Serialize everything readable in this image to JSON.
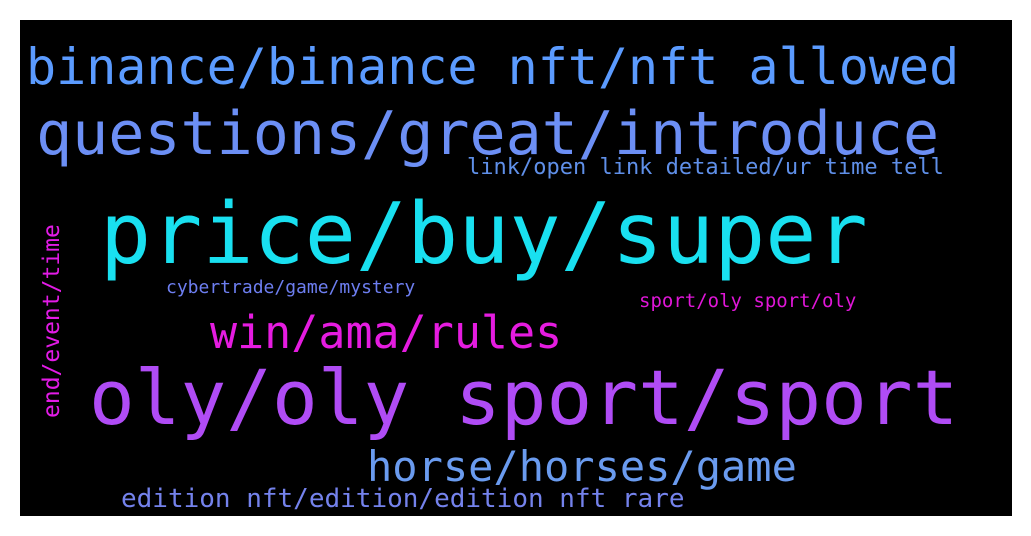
{
  "words": [
    {
      "text": "binance/binance nft/nft allowed",
      "color": "#5b9bff"
    },
    {
      "text": "questions/great/introduce",
      "color": "#6c8ff5"
    },
    {
      "text": "link/open link detailed/ur time tell",
      "color": "#5f8fe8"
    },
    {
      "text": "price/buy/super",
      "color": "#19e0f0"
    },
    {
      "text": "end/event/time",
      "color": "#e21be6"
    },
    {
      "text": "cybertrade/game/mystery",
      "color": "#6d7ef0"
    },
    {
      "text": "sport/oly sport/oly",
      "color": "#e016d8"
    },
    {
      "text": "win/ama/rules",
      "color": "#e51ce0"
    },
    {
      "text": "oly/oly sport/sport",
      "color": "#b04cf5"
    },
    {
      "text": "horse/horses/game",
      "color": "#6a9bef"
    },
    {
      "text": "edition nft/edition/edition nft rare",
      "color": "#7482ec"
    }
  ]
}
